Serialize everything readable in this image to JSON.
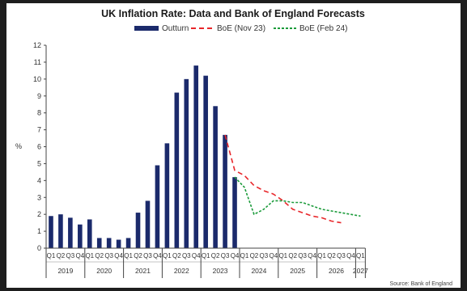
{
  "chart_data": {
    "type": "bar",
    "title": "UK Inflation Rate: Data and Bank of England Forecasts",
    "ylabel": "%",
    "ylim": [
      0,
      12
    ],
    "yticks": [
      0,
      1,
      2,
      3,
      4,
      5,
      6,
      7,
      8,
      9,
      10,
      11,
      12
    ],
    "grid": false,
    "legend_position": "top",
    "source": "Source: Bank of England",
    "years": [
      "2019",
      "2020",
      "2021",
      "2022",
      "2023",
      "2024",
      "2025",
      "2026",
      "2027"
    ],
    "quarter_labels": [
      "Q1",
      "Q2",
      "Q3",
      "Q4"
    ],
    "last_year_quarters": [
      "Q1"
    ],
    "outturn": {
      "name": "Outturn",
      "color": "#1b2a6b",
      "values": [
        1.9,
        2.0,
        1.8,
        1.4,
        1.7,
        0.6,
        0.6,
        0.5,
        0.6,
        2.1,
        2.8,
        4.9,
        6.2,
        9.2,
        10.0,
        10.8,
        10.2,
        8.4,
        6.7,
        4.2
      ]
    },
    "forecasts": [
      {
        "name": "BoE (Nov 23)",
        "color": "#e8262a",
        "dash": "dashed",
        "start_index": 18,
        "values": [
          6.7,
          4.6,
          4.3,
          3.7,
          3.4,
          3.2,
          2.8,
          2.3,
          2.1,
          1.9,
          1.8,
          1.6,
          1.5
        ]
      },
      {
        "name": "BoE (Feb 24)",
        "color": "#1a9b3a",
        "dash": "dotted",
        "start_index": 19,
        "values": [
          4.2,
          3.6,
          2.0,
          2.3,
          2.8,
          2.8,
          2.7,
          2.7,
          2.5,
          2.3,
          2.2,
          2.1,
          2.0,
          1.9
        ]
      }
    ]
  }
}
